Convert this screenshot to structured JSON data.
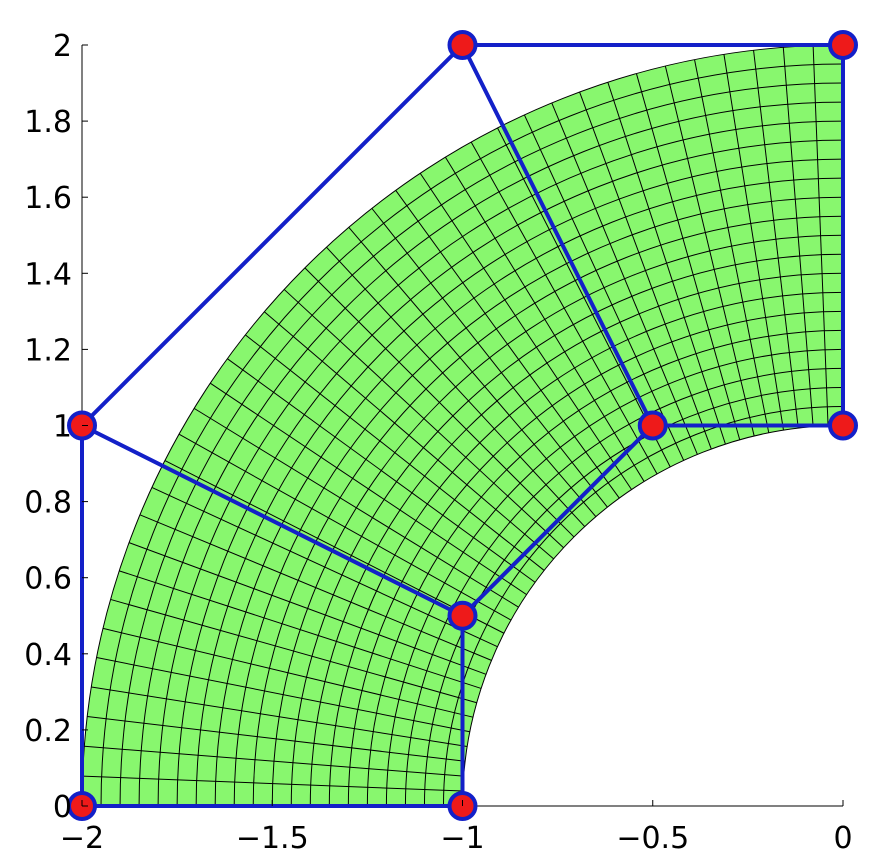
{
  "chart_data": {
    "type": "line",
    "title": "",
    "xlabel": "",
    "ylabel": "",
    "xlim": [
      -2,
      0
    ],
    "ylim": [
      0,
      2
    ],
    "grid": false,
    "x_ticks": [
      {
        "value": -2,
        "label": "−2"
      },
      {
        "value": -1.5,
        "label": "−1.5"
      },
      {
        "value": -1,
        "label": "−1"
      },
      {
        "value": -0.5,
        "label": "−0.5"
      },
      {
        "value": 0,
        "label": "0"
      }
    ],
    "y_ticks": [
      {
        "value": 0,
        "label": "0"
      },
      {
        "value": 0.2,
        "label": "0.2"
      },
      {
        "value": 0.4,
        "label": "0.4"
      },
      {
        "value": 0.6,
        "label": "0.6"
      },
      {
        "value": 0.8,
        "label": "0.8"
      },
      {
        "value": 1,
        "label": "1"
      },
      {
        "value": 1.2,
        "label": "1.2"
      },
      {
        "value": 1.4,
        "label": "1.4"
      },
      {
        "value": 1.6,
        "label": "1.6"
      },
      {
        "value": 1.8,
        "label": "1.8"
      },
      {
        "value": 2,
        "label": "2"
      }
    ],
    "control_points": [
      {
        "x": -2,
        "y": 0
      },
      {
        "x": -2,
        "y": 1
      },
      {
        "x": -1,
        "y": 2
      },
      {
        "x": -1,
        "y": 0
      },
      {
        "x": -1,
        "y": 0.5
      },
      {
        "x": -0.5,
        "y": 1
      },
      {
        "x": 0,
        "y": 2
      },
      {
        "x": 0,
        "y": 1
      }
    ],
    "control_polygon_lines": [
      [
        [
          -2,
          0
        ],
        [
          -2,
          1
        ],
        [
          -1,
          2
        ],
        [
          0,
          2
        ]
      ],
      [
        [
          -1,
          0
        ],
        [
          -1,
          0.5
        ],
        [
          -0.5,
          1
        ],
        [
          0,
          1
        ]
      ],
      [
        [
          -2,
          0
        ],
        [
          -1,
          0
        ]
      ],
      [
        [
          -2,
          1
        ],
        [
          -1,
          0.5
        ]
      ],
      [
        [
          -1,
          2
        ],
        [
          -0.5,
          1
        ]
      ],
      [
        [
          0,
          2
        ],
        [
          0,
          1
        ]
      ]
    ],
    "mesh": {
      "center": [
        0,
        0
      ],
      "inner_radius": 1,
      "outer_radius": 2,
      "angle_start_deg": 90,
      "angle_end_deg": 180,
      "radial_divisions": 20,
      "angular_divisions": 40
    },
    "colors": {
      "mesh_fill": "#88f76e",
      "mesh_lines": "#000000",
      "control_polygon": "#1320c8",
      "point_fill": "#ee1a1a",
      "point_stroke": "#1320c8"
    }
  }
}
